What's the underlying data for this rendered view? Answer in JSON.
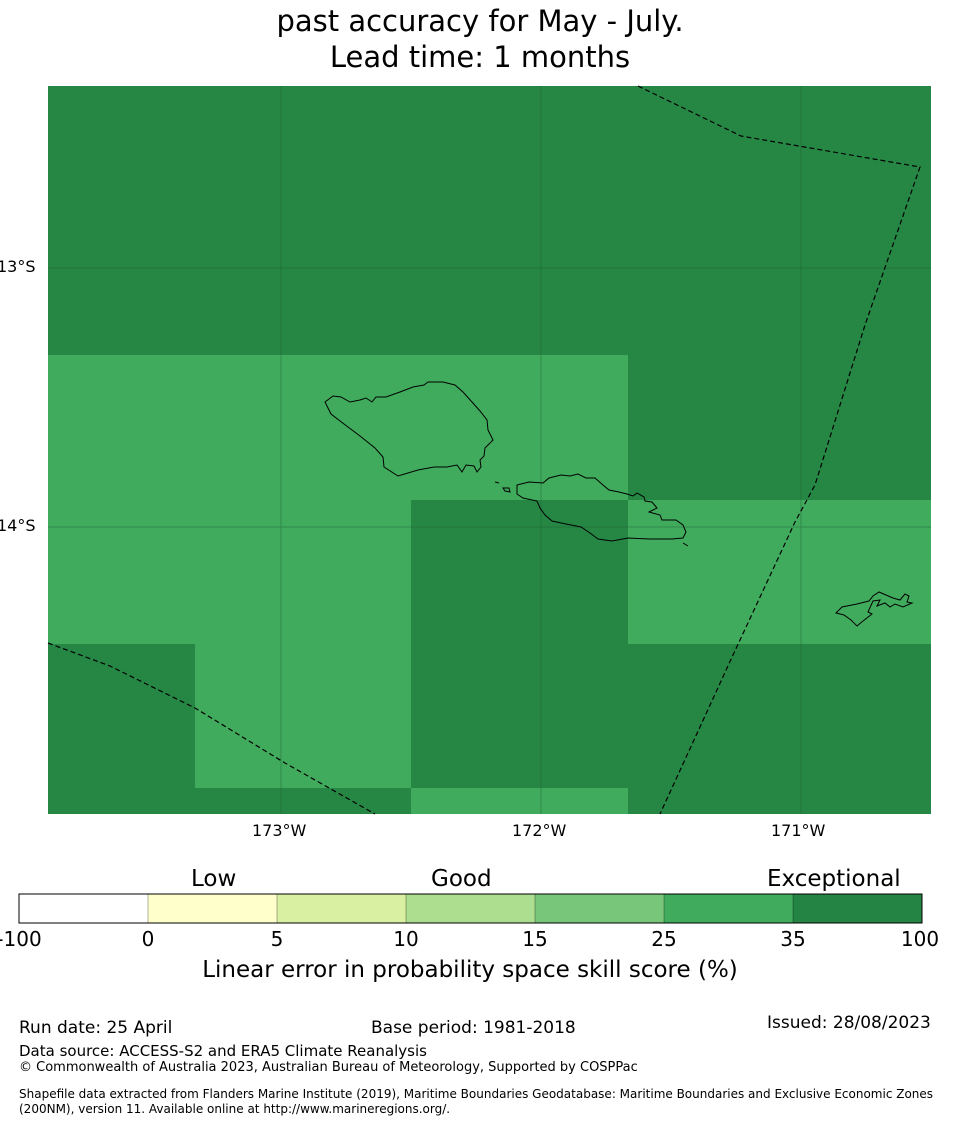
{
  "title": {
    "line1": "past accuracy for May - July.",
    "line2": "Lead time: 1 months"
  },
  "map": {
    "lat_labels": [
      "13°S",
      "14°S"
    ],
    "lon_labels": [
      "173°W",
      "172°W",
      "171°W"
    ],
    "colors": {
      "exceptional_dark": "#268745",
      "score_25_35": "#41ab5d",
      "gridline": "#1a5c30",
      "coastline": "#000000"
    }
  },
  "legend": {
    "categories": [
      "Low",
      "Good",
      "Exceptional"
    ],
    "ticks": [
      "-100",
      "0",
      "5",
      "10",
      "15",
      "25",
      "35",
      "100"
    ],
    "colors": [
      "#ffffff",
      "#ffffcc",
      "#d9f0a3",
      "#addd8e",
      "#78c679",
      "#41ab5d",
      "#238443"
    ],
    "label": "Linear error in probability space skill score (%)"
  },
  "footer": {
    "run_date": "Run date: 25 April",
    "base_period": "Base period: 1981-2018",
    "issued": "Issued: 28/08/2023",
    "data_source": "Data source: ACCESS-S2 and ERA5 Climate Reanalysis",
    "copyright": "© Commonwealth of Australia 2023, Australian Bureau of Meteorology, Supported by COSPPac",
    "shapefile": "Shapefile data extracted from Flanders Marine Institute (2019), Maritime Boundaries Geodatabase: Maritime Boundaries and Exclusive Economic Zones (200NM), version 11. Available online at http://www.marineregions.org/."
  }
}
